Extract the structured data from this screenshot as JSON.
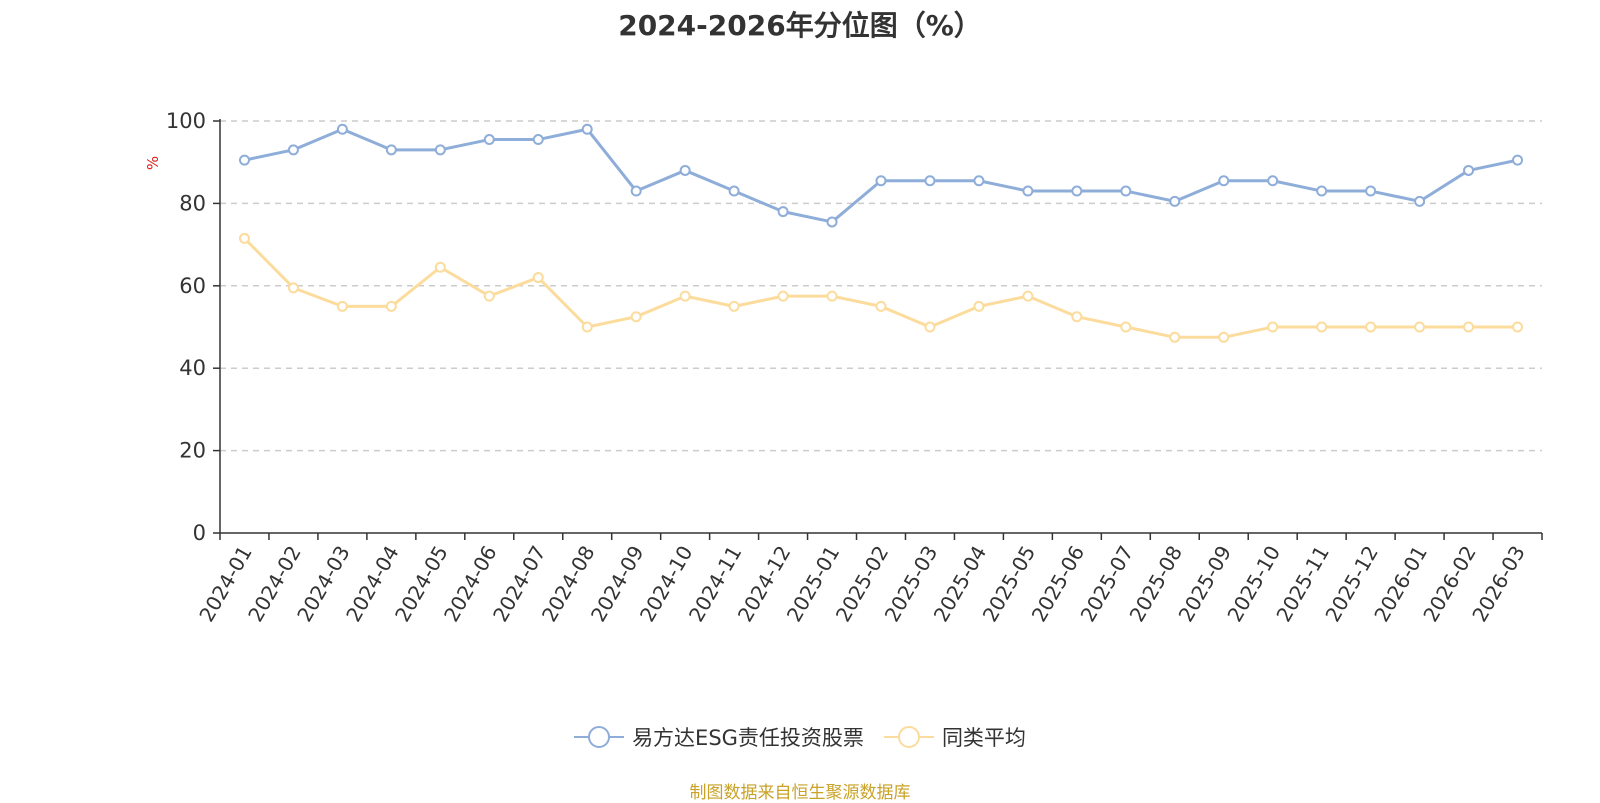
{
  "chart_data": {
    "type": "line",
    "title": "2024-2026年分位图（%）",
    "ylabel": "%",
    "xlabel": "",
    "ylim": [
      0,
      100
    ],
    "yticks": [
      0,
      20,
      40,
      60,
      80,
      100
    ],
    "grid": true,
    "legend_position": "bottom",
    "categories": [
      "2024-01",
      "2024-02",
      "2024-03",
      "2024-04",
      "2024-05",
      "2024-06",
      "2024-07",
      "2024-08",
      "2024-09",
      "2024-10",
      "2024-11",
      "2024-12",
      "2025-01",
      "2025-02",
      "2025-03",
      "2025-04",
      "2025-05",
      "2025-06",
      "2025-07",
      "2025-08",
      "2025-09",
      "2025-10",
      "2025-11",
      "2025-12",
      "2026-01",
      "2026-02",
      "2026-03"
    ],
    "series": [
      {
        "name": "易方达ESG责任投资股票",
        "color": "#8eadd9",
        "values": [
          90.5,
          93,
          98,
          93,
          93,
          95.5,
          95.5,
          98,
          83,
          88,
          83,
          78,
          75.5,
          85.5,
          85.5,
          85.5,
          83,
          83,
          83,
          80.5,
          85.5,
          85.5,
          83,
          83,
          80.5,
          88,
          90.5
        ]
      },
      {
        "name": "同类平均",
        "color": "#fcdc9c",
        "values": [
          71.5,
          59.5,
          55,
          55,
          64.5,
          57.5,
          62,
          50,
          52.5,
          57.5,
          55,
          57.5,
          57.5,
          55,
          50,
          55,
          57.5,
          52.5,
          50,
          47.5,
          47.5,
          50,
          50,
          50,
          50,
          50,
          50
        ]
      }
    ],
    "source": "制图数据来自恒生聚源数据库"
  }
}
